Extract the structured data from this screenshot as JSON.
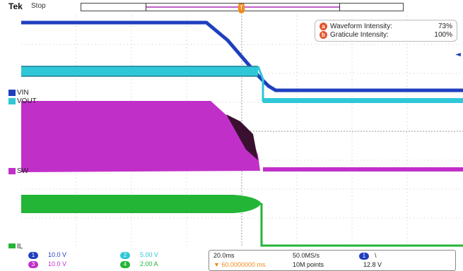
{
  "header": {
    "brand": "Tek",
    "run_state": "Stop"
  },
  "trigger_marker": "T",
  "intensity": {
    "waveform_key": "a",
    "waveform_label": "Waveform Intensity:",
    "waveform_value": "73%",
    "graticule_key": "b",
    "graticule_label": "Graticule Intensity:",
    "graticule_value": "100%"
  },
  "channels": {
    "ch1": {
      "name": "VIN",
      "color": "#1f3fbf"
    },
    "ch2": {
      "name": "VOUT",
      "color": "#2ec7d8"
    },
    "ch3": {
      "name": "SW",
      "color": "#c12fc9"
    },
    "ch4": {
      "name": "IL",
      "color": "#23b536"
    }
  },
  "scales": {
    "ch1": {
      "num": "1",
      "value": "10.0 V"
    },
    "ch2": {
      "num": "2",
      "value": "5.00 V"
    },
    "ch3": {
      "num": "3",
      "value": "10.0 V"
    },
    "ch4": {
      "num": "4",
      "value": "2.00 A"
    }
  },
  "acquisition": {
    "timebase": "20.0ms",
    "sample_rate": "50.0MS/s",
    "record_length": "10M points",
    "trigger_source": "1",
    "trigger_slope": "\\",
    "trigger_level": "12.8 V",
    "horizontal_position": "▼ 60.0000000 ms"
  }
}
